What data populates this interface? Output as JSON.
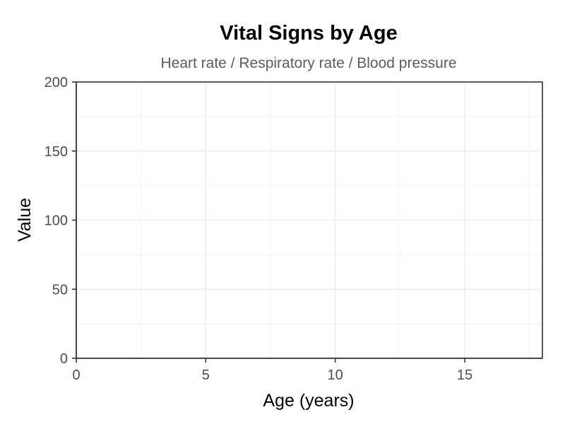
{
  "chart_data": {
    "type": "line",
    "title": "Vital Signs by Age",
    "subtitle": "Heart rate / Respiratory rate / Blood pressure",
    "xlabel": "Age (years)",
    "ylabel": "Value",
    "xlim": [
      0,
      18
    ],
    "ylim": [
      0,
      200
    ],
    "x_ticks": [
      0,
      5,
      10,
      15
    ],
    "x_tick_labels": [
      "0",
      "5",
      "10",
      "15"
    ],
    "y_ticks": [
      0,
      50,
      100,
      150,
      200
    ],
    "y_tick_labels": [
      "0",
      "50",
      "100",
      "150",
      "200"
    ],
    "x_minor": [
      2.5,
      7.5,
      12.5,
      17.5
    ],
    "y_minor": [
      25,
      75,
      125,
      175
    ],
    "grid": true,
    "series": []
  }
}
